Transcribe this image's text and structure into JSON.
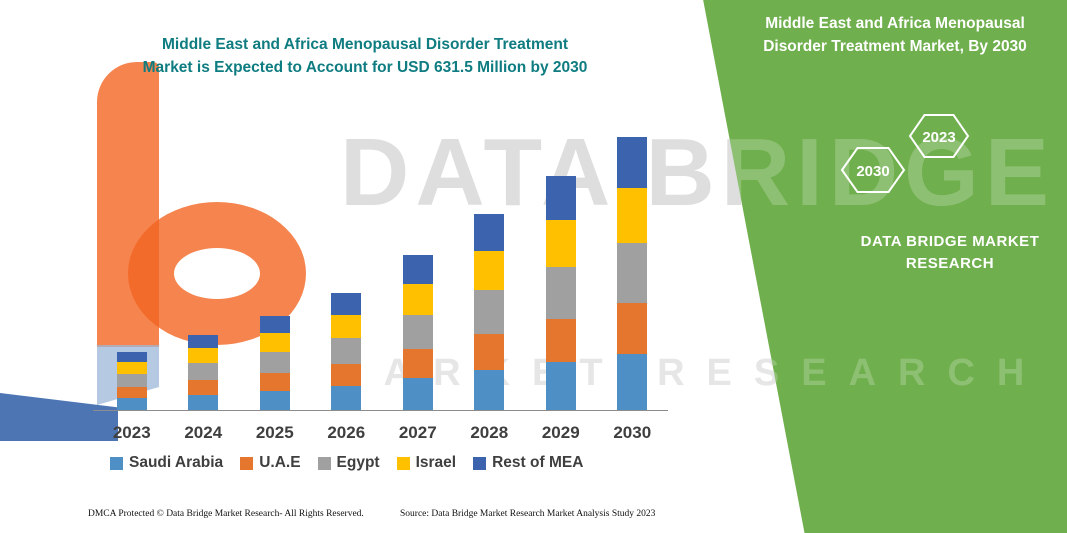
{
  "chart": {
    "title_line1": "Middle East and Africa Menopausal Disorder Treatment",
    "title_line2": "Market is Expected to Account for USD 631.5 Million by 2030"
  },
  "chart_data": {
    "type": "bar",
    "stacked": true,
    "title": "Middle East and Africa Menopausal Disorder Treatment Market is Expected to Account for USD 631.5 Million by 2030",
    "unit": "USD Million",
    "categories": [
      "2023",
      "2024",
      "2025",
      "2026",
      "2027",
      "2028",
      "2029",
      "2030"
    ],
    "series": [
      {
        "name": "Saudi Arabia",
        "color": "#4e8fc6",
        "values": [
          28,
          36,
          45,
          56,
          74,
          93,
          111,
          130
        ]
      },
      {
        "name": "U.A.E",
        "color": "#e4762d",
        "values": [
          25,
          33,
          41,
          50,
          67,
          84,
          100,
          117
        ]
      },
      {
        "name": "Egypt",
        "color": "#a0a0a0",
        "values": [
          30,
          39,
          48,
          60,
          80,
          101,
          121,
          141
        ]
      },
      {
        "name": "Israel",
        "color": "#ffc000",
        "values": [
          27,
          35,
          44,
          54,
          72,
          91,
          108,
          126
        ]
      },
      {
        "name": "Rest of MEA",
        "color": "#3b63ae",
        "values": [
          24,
          32,
          40,
          50,
          65,
          84,
          101,
          117.5
        ]
      }
    ],
    "totals": [
      134,
      175,
      218,
      270,
      358,
      453,
      541,
      631.5
    ],
    "ylim": [
      0,
      660
    ],
    "grid": false,
    "legend_position": "bottom"
  },
  "side_panel": {
    "title": "Middle East and Africa Menopausal Disorder Treatment Market, By 2030",
    "hexagon_back": "2030",
    "hexagon_front": "2023",
    "brand_line1": "DATA BRIDGE MARKET",
    "brand_line2": "RESEARCH",
    "color": "#6faf4d"
  },
  "watermark": {
    "line1": "DATA BRIDGE",
    "line2": "MARKET RESEARCH"
  },
  "footer": {
    "left": "DMCA Protected © Data Bridge Market Research-  All Rights Reserved.",
    "center": "Source: Data Bridge Market Research  Market Analysis Study 2023"
  }
}
